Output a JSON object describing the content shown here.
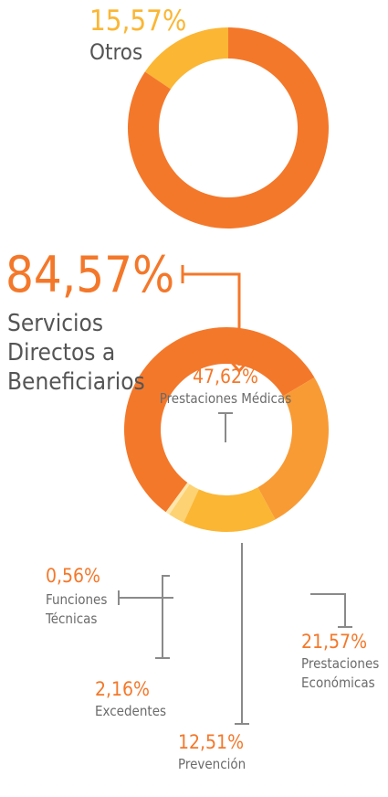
{
  "chart_data": [
    {
      "type": "pie",
      "categories": [
        "Servicios Directos a Beneficiarios",
        "Otros"
      ],
      "values": [
        84.57,
        15.57
      ],
      "value_labels": [
        "84,57%",
        "15,57%"
      ],
      "colors": [
        "#f4782a",
        "#fbb634"
      ]
    },
    {
      "type": "pie",
      "categories": [
        "Prestaciones Médicas",
        "Prestaciones Económicas",
        "Prevención",
        "Excedentes",
        "Funciones Técnicas"
      ],
      "values": [
        47.62,
        21.57,
        12.51,
        2.16,
        0.56
      ],
      "value_labels": [
        "47,62%",
        "21,57%",
        "12,51%",
        "2,16%",
        "0,56%"
      ],
      "colors": [
        "#f4782a",
        "#f89b35",
        "#fbb634",
        "#fdd272",
        "#fee6ad"
      ]
    }
  ]
}
